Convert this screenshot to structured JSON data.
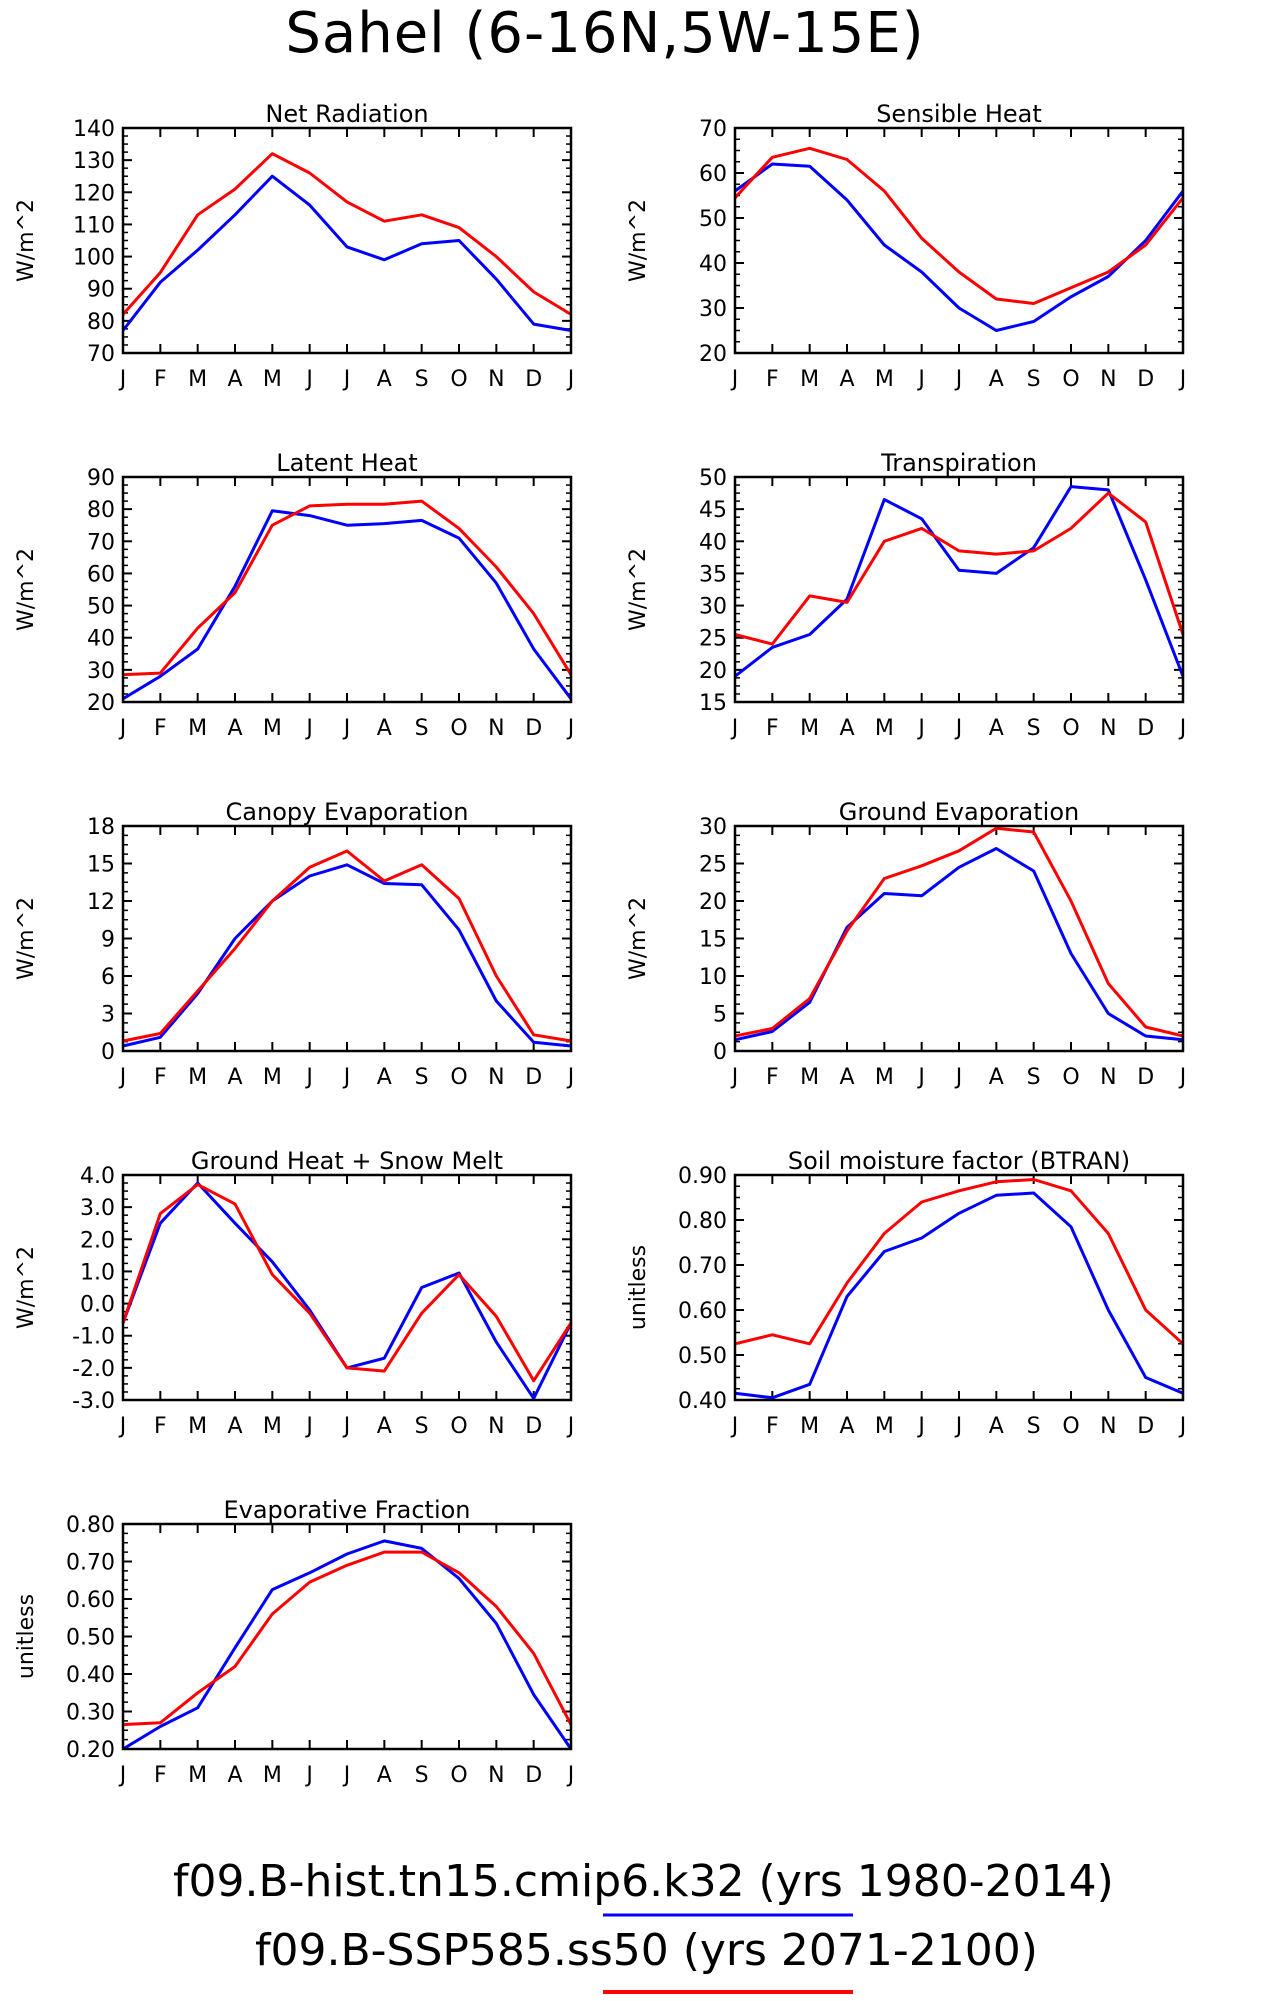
{
  "page_title": "Sahel (6-16N,5W-15E)",
  "months": [
    "J",
    "F",
    "M",
    "A",
    "M",
    "J",
    "J",
    "A",
    "S",
    "O",
    "N",
    "D",
    "J"
  ],
  "colors": {
    "hist": "#0000ff",
    "ssp": "#ff0000"
  },
  "legend": [
    {
      "label": "f09.B-hist.tn15.cmip6.k32 (yrs 1980-2014)",
      "color": "#0000ff"
    },
    {
      "label": "f09.B-SSP585.ss50 (yrs 2071-2100)",
      "color": "#ff0000"
    }
  ],
  "chart_data": [
    {
      "type": "line",
      "title": "Net Radiation",
      "ylabel": "W/m^2",
      "ylim": [
        70,
        140
      ],
      "yticks": [
        "70",
        "80",
        "90",
        "100",
        "110",
        "120",
        "130",
        "140"
      ],
      "series": [
        {
          "values": [
            77,
            92,
            102,
            113,
            125,
            116,
            103,
            99,
            104,
            105,
            93,
            79,
            77
          ]
        },
        {
          "values": [
            82,
            95,
            113,
            121,
            132,
            126,
            117,
            111,
            113,
            109,
            100,
            89,
            82
          ]
        }
      ]
    },
    {
      "type": "line",
      "title": "Sensible Heat",
      "ylabel": "W/m^2",
      "ylim": [
        20,
        70
      ],
      "yticks": [
        "20",
        "30",
        "40",
        "50",
        "60",
        "70"
      ],
      "series": [
        {
          "values": [
            56,
            62,
            61.5,
            54,
            44,
            38,
            30,
            25,
            27,
            32.5,
            37,
            45,
            56
          ]
        },
        {
          "values": [
            54.5,
            63.5,
            65.5,
            63,
            56,
            45.5,
            38,
            32,
            31,
            34.5,
            38,
            44,
            54.5
          ]
        }
      ]
    },
    {
      "type": "line",
      "title": "Latent Heat",
      "ylabel": "W/m^2",
      "ylim": [
        20,
        90
      ],
      "yticks": [
        "20",
        "30",
        "40",
        "50",
        "60",
        "70",
        "80",
        "90"
      ],
      "series": [
        {
          "values": [
            21,
            28,
            36.5,
            56,
            79.5,
            78,
            75,
            75.5,
            76.5,
            71,
            57,
            36.5,
            21
          ]
        },
        {
          "values": [
            28.5,
            29,
            43,
            54,
            75,
            81,
            81.5,
            81.5,
            82.5,
            74,
            62,
            47.5,
            28.5
          ]
        }
      ]
    },
    {
      "type": "line",
      "title": "Transpiration",
      "ylabel": "W/m^2",
      "ylim": [
        15,
        50
      ],
      "yticks": [
        "15",
        "20",
        "25",
        "30",
        "35",
        "40",
        "45",
        "50"
      ],
      "series": [
        {
          "values": [
            19,
            23.5,
            25.5,
            31,
            46.5,
            43.5,
            35.5,
            35,
            39,
            48.5,
            48,
            34,
            19
          ]
        },
        {
          "values": [
            25.5,
            24,
            31.5,
            30.5,
            40,
            42,
            38.5,
            38,
            38.5,
            42,
            47.5,
            43,
            25.5
          ]
        }
      ]
    },
    {
      "type": "line",
      "title": "Canopy Evaporation",
      "ylabel": "W/m^2",
      "ylim": [
        0,
        18
      ],
      "yticks": [
        "0",
        "3",
        "6",
        "9",
        "12",
        "15",
        "18"
      ],
      "series": [
        {
          "values": [
            0.4,
            1.1,
            4.6,
            9,
            12,
            14,
            14.9,
            13.4,
            13.3,
            9.7,
            4,
            0.7,
            0.4
          ]
        },
        {
          "values": [
            0.8,
            1.4,
            4.8,
            8.2,
            12,
            14.7,
            16,
            13.6,
            14.9,
            12.2,
            6,
            1.3,
            0.8
          ]
        }
      ]
    },
    {
      "type": "line",
      "title": "Ground Evaporation",
      "ylabel": "W/m^2",
      "ylim": [
        0,
        30
      ],
      "yticks": [
        "0",
        "5",
        "10",
        "15",
        "20",
        "25",
        "30"
      ],
      "series": [
        {
          "values": [
            1.5,
            2.6,
            6.5,
            16.5,
            21,
            20.7,
            24.5,
            27,
            24,
            13,
            5,
            2,
            1.5
          ]
        },
        {
          "values": [
            2,
            3,
            7,
            16,
            23,
            24.7,
            26.7,
            29.7,
            29.2,
            20,
            9,
            3.2,
            2
          ]
        }
      ]
    },
    {
      "type": "line",
      "title": "Ground Heat + Snow Melt",
      "ylabel": "W/m^2",
      "ylim": [
        -3,
        4
      ],
      "yticks": [
        "-3.0",
        "-2.0",
        "-1.0",
        "0.0",
        "1.0",
        "2.0",
        "3.0",
        "4.0"
      ],
      "series": [
        {
          "values": [
            -0.6,
            2.5,
            3.75,
            2.5,
            1.3,
            -0.2,
            -2,
            -1.7,
            0.5,
            0.95,
            -1.2,
            -2.95,
            -0.6
          ]
        },
        {
          "values": [
            -0.6,
            2.8,
            3.7,
            3.1,
            0.9,
            -0.3,
            -2,
            -2.1,
            -0.3,
            0.9,
            -0.4,
            -2.4,
            -0.6
          ]
        }
      ]
    },
    {
      "type": "line",
      "title": "Soil moisture factor (BTRAN)",
      "ylabel": "unitless",
      "ylim": [
        0.4,
        0.9
      ],
      "yticks": [
        "0.40",
        "0.50",
        "0.60",
        "0.70",
        "0.80",
        "0.90"
      ],
      "series": [
        {
          "values": [
            0.415,
            0.405,
            0.435,
            0.63,
            0.73,
            0.76,
            0.815,
            0.855,
            0.86,
            0.785,
            0.6,
            0.45,
            0.415
          ]
        },
        {
          "values": [
            0.525,
            0.545,
            0.525,
            0.66,
            0.77,
            0.84,
            0.865,
            0.885,
            0.89,
            0.865,
            0.77,
            0.6,
            0.525
          ]
        }
      ]
    },
    {
      "type": "line",
      "title": "Evaporative Fraction",
      "ylabel": "unitless",
      "ylim": [
        0.2,
        0.8
      ],
      "yticks": [
        "0.20",
        "0.30",
        "0.40",
        "0.50",
        "0.60",
        "0.70",
        "0.80"
      ],
      "series": [
        {
          "values": [
            0.2,
            0.26,
            0.31,
            0.47,
            0.625,
            0.67,
            0.72,
            0.755,
            0.735,
            0.655,
            0.535,
            0.345,
            0.2
          ]
        },
        {
          "values": [
            0.265,
            0.27,
            0.35,
            0.42,
            0.56,
            0.645,
            0.69,
            0.725,
            0.725,
            0.67,
            0.58,
            0.455,
            0.265
          ]
        }
      ]
    }
  ]
}
